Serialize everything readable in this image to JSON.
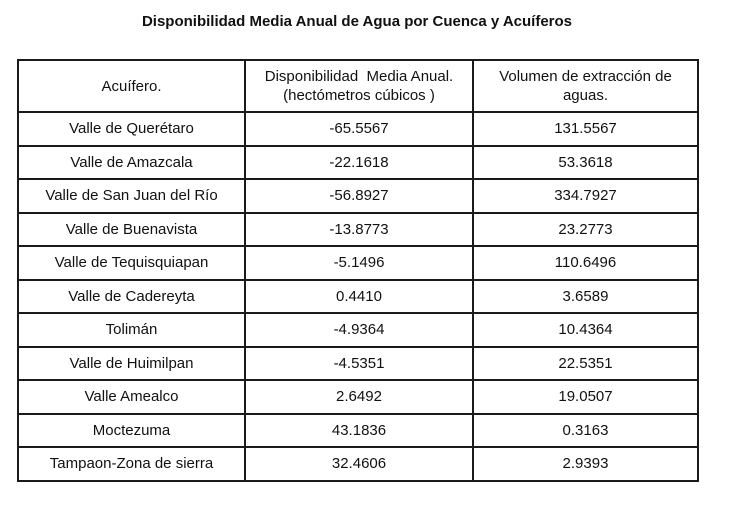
{
  "title": "Disponibilidad Media Anual de Agua por Cuenca y Acuíferos",
  "table": {
    "headers": [
      "Acuífero.",
      "Disponibilidad  Media Anual. (hectómetros cúbicos )",
      "Volumen de extracción de aguas."
    ],
    "rows": [
      [
        "Valle de Querétaro",
        "-65.5567",
        "131.5567"
      ],
      [
        "Valle de Amazcala",
        "-22.1618",
        "53.3618"
      ],
      [
        "Valle de San Juan del Río",
        "-56.8927",
        "334.7927"
      ],
      [
        "Valle de Buenavista",
        "-13.8773",
        "23.2773"
      ],
      [
        "Valle de Tequisquiapan",
        "-5.1496",
        "110.6496"
      ],
      [
        "Valle de Cadereyta",
        "0.4410",
        "3.6589"
      ],
      [
        "Tolimán",
        "-4.9364",
        "10.4364"
      ],
      [
        "Valle de Huimilpan",
        "-4.5351",
        "22.5351"
      ],
      [
        "Valle Amealco",
        "2.6492",
        "19.0507"
      ],
      [
        "Moctezuma",
        "43.1836",
        "0.3163"
      ],
      [
        "Tampaon-Zona de sierra",
        "32.4606",
        "2.9393"
      ]
    ]
  }
}
